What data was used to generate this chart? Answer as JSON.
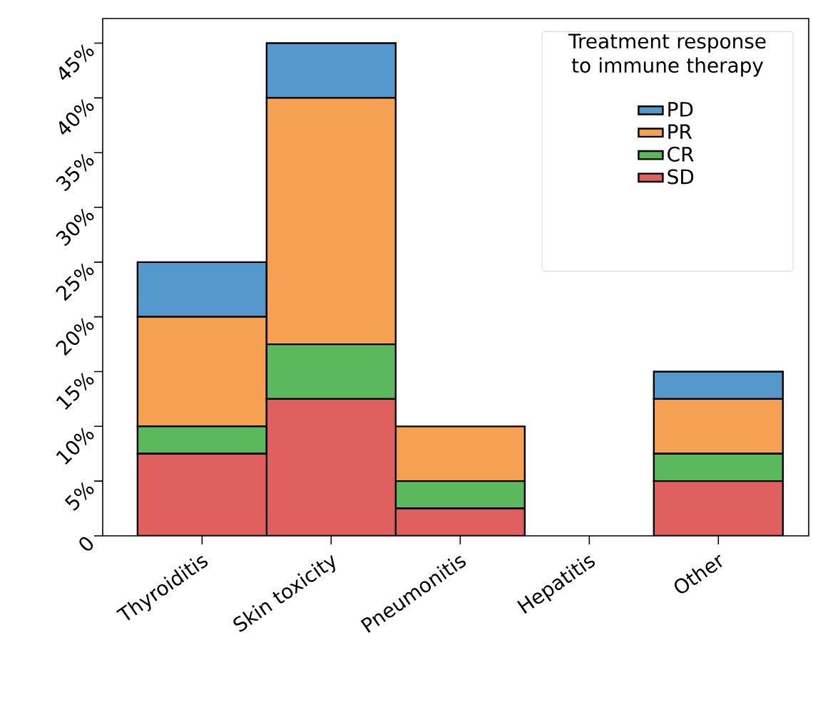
{
  "chart_data": {
    "type": "bar",
    "stacked": true,
    "legend": "top right",
    "legend_title": "Treatment response to immune therapy",
    "categories": [
      "Thyroiditis",
      "Skin toxicity",
      "Pneumonitis",
      "Hepatitis",
      "Other"
    ],
    "series": [
      {
        "name": "SD",
        "color": "#e06060",
        "values": [
          7.5,
          12.5,
          2.5,
          0,
          5
        ]
      },
      {
        "name": "CR",
        "color": "#5cb85c",
        "values": [
          2.5,
          5,
          2.5,
          0,
          2.5
        ]
      },
      {
        "name": "PR",
        "color": "#f5a053",
        "values": [
          10,
          22.5,
          5,
          0,
          5
        ]
      },
      {
        "name": "PD",
        "color": "#5599cc",
        "values": [
          5,
          5,
          0,
          0,
          2.5
        ]
      }
    ],
    "ylim": [
      0,
      47.25
    ],
    "yticks": [
      0,
      {
        "value": 5,
        "label": "5%"
      },
      {
        "value": 10,
        "label": "10%"
      },
      {
        "value": 15,
        "label": "15%"
      },
      {
        "value": 20,
        "label": "20%"
      },
      {
        "value": 25,
        "label": "25%"
      },
      {
        "value": 30,
        "label": "30%"
      },
      {
        "value": 35,
        "label": "35%"
      },
      {
        "value": 40,
        "label": "40%"
      },
      {
        "value": 45,
        "label": "45%"
      }
    ]
  }
}
